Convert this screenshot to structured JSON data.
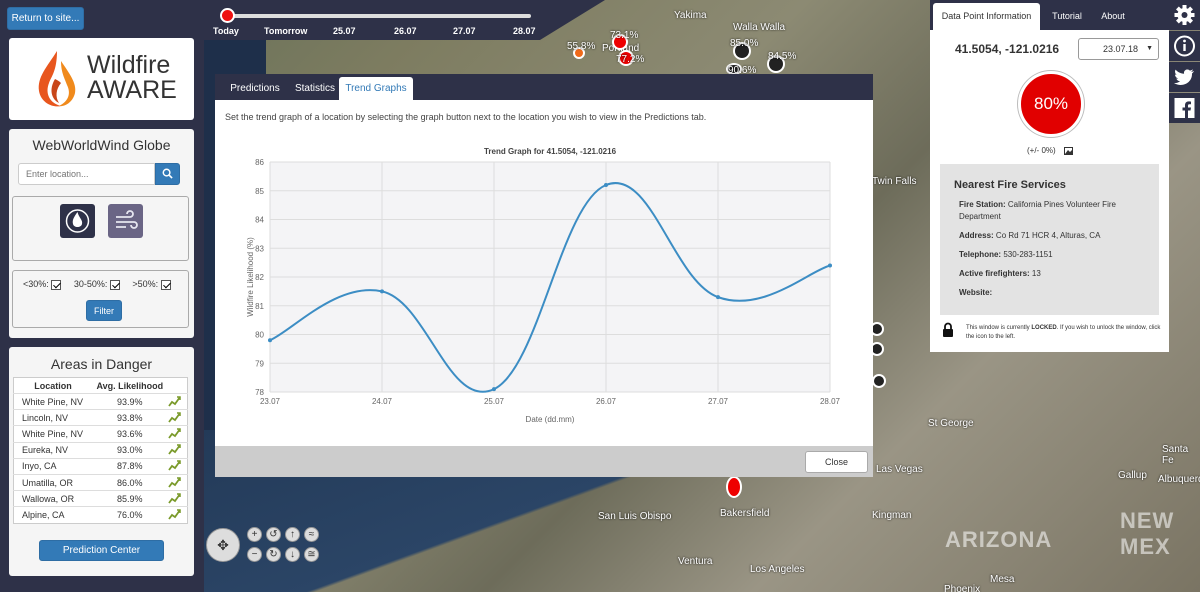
{
  "left": {
    "return_label": "Return to site...",
    "logo": {
      "line1": "Wildfire",
      "line2": "AWARE"
    },
    "globe": {
      "title": "WebWorldWind Globe",
      "search_placeholder": "Enter location...",
      "layer_fire_icon": "flame-icon",
      "layer_wind_icon": "wind-icon",
      "filters": [
        {
          "label": "<30%:",
          "checked": true
        },
        {
          "label": "30-50%:",
          "checked": true
        },
        {
          "label": ">50%:",
          "checked": true
        }
      ],
      "filter_label": "Filter"
    },
    "danger": {
      "title": "Areas in Danger",
      "col_location": "Location",
      "col_likelihood": "Avg. Likelihood",
      "rows": [
        {
          "location": "White Pine, NV",
          "value": "93.9%"
        },
        {
          "location": "Lincoln, NV",
          "value": "93.8%"
        },
        {
          "location": "White Pine, NV",
          "value": "93.6%"
        },
        {
          "location": "Eureka, NV",
          "value": "93.0%"
        },
        {
          "location": "Inyo, CA",
          "value": "87.8%"
        },
        {
          "location": "Umatilla, OR",
          "value": "86.0%"
        },
        {
          "location": "Wallowa, OR",
          "value": "85.9%"
        },
        {
          "location": "Alpine, CA",
          "value": "76.0%"
        }
      ],
      "prediction_center_label": "Prediction Center"
    }
  },
  "timeline": {
    "labels": [
      "Today",
      "Tomorrow",
      "25.07",
      "26.07",
      "27.07",
      "28.07"
    ],
    "selected_index": 0
  },
  "modal": {
    "tabs": [
      "Predictions",
      "Statistics",
      "Trend Graphs"
    ],
    "active_tab": "Trend Graphs",
    "message": "Set the trend graph of a location by selecting the graph button next to the location you wish to view in the Predictions tab.",
    "close_label": "Close"
  },
  "chart_data": {
    "type": "line",
    "title": "Trend Graph for 41.5054, -121.0216",
    "xlabel": "Date (dd.mm)",
    "ylabel": "Wildfire Likelihood (%)",
    "categories": [
      "23.07",
      "24.07",
      "25.07",
      "26.07",
      "27.07",
      "28.07"
    ],
    "values": [
      79.8,
      81.5,
      78.1,
      85.2,
      81.3,
      82.4
    ],
    "ylim": [
      78,
      86
    ],
    "yticks": [
      "78",
      "79",
      "80",
      "81",
      "82",
      "83",
      "84",
      "85",
      "86"
    ],
    "color": "#3c8dc4",
    "grid": true
  },
  "right": {
    "tabs": [
      "Data Point Information",
      "Tutorial",
      "About"
    ],
    "active_tab": "Data Point Information",
    "coords": "41.5054, -121.0216",
    "date": "23.07.18",
    "likelihood": "80%",
    "likelihood_color": "#e10000",
    "range": "(+/- 0%)",
    "fire": {
      "title": "Nearest Fire Services",
      "station_label": "Fire Station:",
      "station": "California Pines Volunteer Fire Department",
      "address_label": "Address:",
      "address": "Co Rd 71 HCR 4, Alturas, CA",
      "phone_label": "Telephone:",
      "phone": "530-283-1151",
      "ff_label": "Active firefighters:",
      "ff": "13",
      "web_label": "Website:",
      "web": ""
    },
    "lock_text_pre": "This window is currently ",
    "lock_word": "LOCKED",
    "lock_text_post": ". If you wish to unlock the window, click the icon to the left."
  },
  "social": [
    "gear-icon",
    "info-icon",
    "twitter-icon",
    "facebook-icon"
  ],
  "map": {
    "labels": [
      "Yakima",
      "Walla Walla",
      "Portland",
      "Twin Falls",
      "St George",
      "Las Vegas",
      "Kingman",
      "San Luis Obispo",
      "Bakersfield",
      "Ventura",
      "Los Angeles",
      "Mesa",
      "Phoenix",
      "Albuquerque",
      "Gallup",
      "Santa Fe",
      "ARIZONA",
      "NEW MEX"
    ],
    "points": [
      "55.8%",
      "73.1%",
      "77.2%",
      "85.0%",
      "84.5%",
      "90.6%"
    ]
  }
}
